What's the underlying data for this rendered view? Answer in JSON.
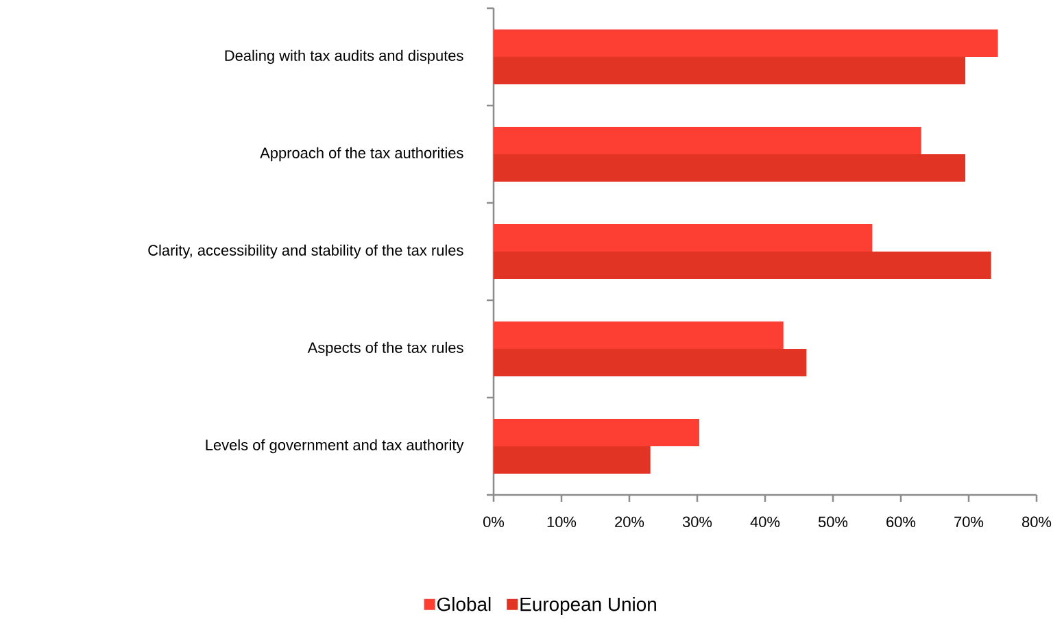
{
  "chart_data": {
    "type": "bar",
    "orientation": "horizontal",
    "categories": [
      "Dealing with tax audits and disputes",
      "Approach of the tax authorities",
      "Clarity, accessibility and stability of the tax rules",
      "Aspects of the tax rules",
      "Levels of government and tax authority"
    ],
    "series": [
      {
        "name": "Global",
        "color": "#fd3e33",
        "values": [
          74.3,
          63.0,
          55.8,
          42.7,
          30.3
        ]
      },
      {
        "name": "European Union",
        "color": "#e23424",
        "values": [
          69.5,
          69.5,
          73.3,
          46.1,
          23.1
        ]
      }
    ],
    "xlim": [
      0,
      80
    ],
    "xticks": [
      {
        "value": 0,
        "label": "0%"
      },
      {
        "value": 10,
        "label": "10%"
      },
      {
        "value": 20,
        "label": "20%"
      },
      {
        "value": 30,
        "label": "30%"
      },
      {
        "value": 40,
        "label": "40%"
      },
      {
        "value": 50,
        "label": "50%"
      },
      {
        "value": 60,
        "label": "60%"
      },
      {
        "value": 70,
        "label": "70%"
      },
      {
        "value": 80,
        "label": "80%"
      }
    ],
    "grid": false,
    "legend": "bottom"
  }
}
